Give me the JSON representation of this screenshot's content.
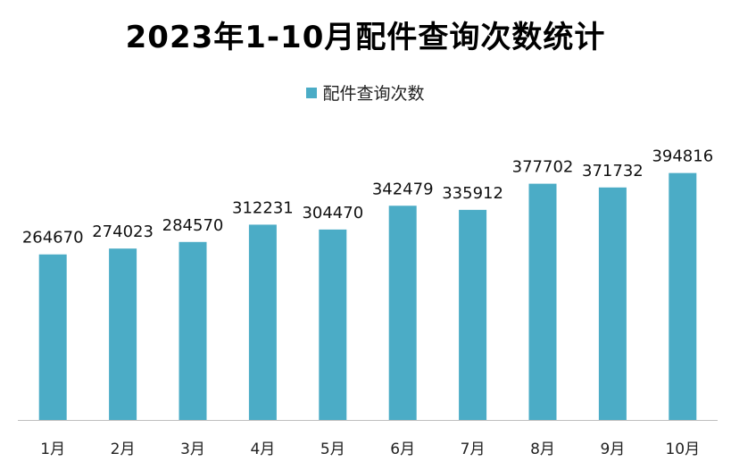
{
  "chart_data": {
    "type": "bar",
    "title": "2023年1-10月配件查询次数统计",
    "xlabel": "",
    "ylabel": "",
    "categories": [
      "1月",
      "2月",
      "3月",
      "4月",
      "5月",
      "6月",
      "7月",
      "8月",
      "9月",
      "10月"
    ],
    "series": [
      {
        "name": "配件查询次数",
        "color": "#4BACC6",
        "values": [
          264670,
          274023,
          284570,
          312231,
          304470,
          342479,
          335912,
          377702,
          371732,
          394816
        ]
      }
    ],
    "ylim": [
      0,
      400000
    ],
    "grid": false,
    "legend_position": "top"
  }
}
